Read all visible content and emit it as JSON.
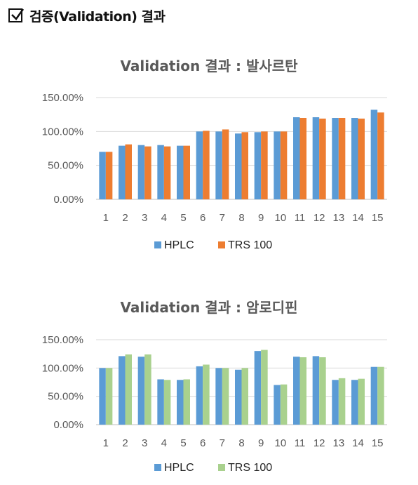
{
  "page": {
    "heading": "검증(Validation) 결과",
    "heading_icon": "checkbox-checked-icon"
  },
  "chart_data": [
    {
      "type": "bar",
      "title": "Validation 결과 : 발사르탄",
      "categories": [
        "1",
        "2",
        "3",
        "4",
        "5",
        "6",
        "7",
        "8",
        "9",
        "10",
        "11",
        "12",
        "13",
        "14",
        "15"
      ],
      "yticks": [
        "150.00%",
        "100.00%",
        "50.00%",
        "0.00%"
      ],
      "ylim": [
        0,
        150
      ],
      "grid": true,
      "legend_position": "bottom",
      "series": [
        {
          "name": "HPLC",
          "color": "#5B9BD5",
          "values": [
            70,
            79,
            80,
            80,
            79,
            100,
            100,
            97,
            99,
            100,
            121,
            121,
            120,
            120,
            132
          ]
        },
        {
          "name": "TRS 100",
          "color": "#ED7D31",
          "values": [
            70,
            81,
            78,
            78,
            79,
            101,
            103,
            99,
            100,
            100,
            120,
            119,
            120,
            119,
            128
          ]
        }
      ]
    },
    {
      "type": "bar",
      "title": "Validation  결과 : 암로디핀",
      "categories": [
        "1",
        "2",
        "3",
        "4",
        "5",
        "6",
        "7",
        "8",
        "9",
        "10",
        "11",
        "12",
        "13",
        "14",
        "15"
      ],
      "yticks": [
        "150.00%",
        "100.00%",
        "50.00%",
        "0.00%"
      ],
      "ylim": [
        0,
        150
      ],
      "grid": true,
      "legend_position": "bottom",
      "series": [
        {
          "name": "HPLC",
          "color": "#5B9BD5",
          "values": [
            100,
            121,
            120,
            80,
            79,
            103,
            100,
            97,
            130,
            70,
            120,
            121,
            79,
            79,
            102
          ]
        },
        {
          "name": "TRS 100",
          "color": "#A9D18E",
          "values": [
            100,
            124,
            124,
            79,
            80,
            106,
            100,
            100,
            132,
            71,
            119,
            119,
            82,
            81,
            102
          ]
        }
      ]
    }
  ]
}
